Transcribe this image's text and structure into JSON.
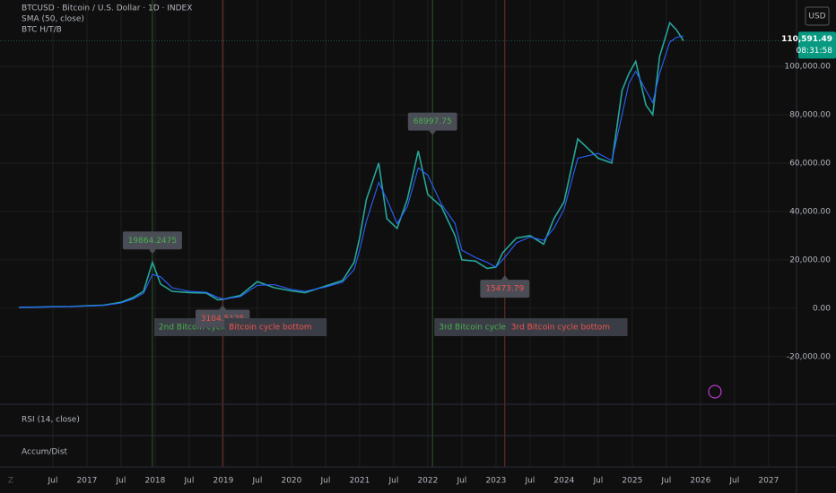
{
  "chart_data": {
    "type": "line",
    "title": "BTCUSD · Bitcoin / U.S. Dollar · 1D · INDEX",
    "indicator": "BTC H/T/B",
    "currency": "USD",
    "last_price": {
      "value": 110591.49,
      "label": "110,591.49"
    },
    "countdown": "08:31:58",
    "panes": [
      "RSI (14, close)",
      "Accum/Dist"
    ],
    "x": [
      2016.0,
      2016.25,
      2016.5,
      2016.75,
      2017.0,
      2017.25,
      2017.5,
      2017.67,
      2017.83,
      2017.96,
      2018.08,
      2018.25,
      2018.5,
      2018.75,
      2018.92,
      2019.0,
      2019.25,
      2019.5,
      2019.75,
      2020.0,
      2020.2,
      2020.5,
      2020.75,
      2020.92,
      2021.0,
      2021.1,
      2021.28,
      2021.4,
      2021.55,
      2021.7,
      2021.86,
      2022.0,
      2022.2,
      2022.4,
      2022.5,
      2022.7,
      2022.87,
      2023.0,
      2023.1,
      2023.3,
      2023.5,
      2023.7,
      2023.85,
      2024.0,
      2024.2,
      2024.5,
      2024.7,
      2024.85,
      2024.95,
      2025.05,
      2025.2,
      2025.3,
      2025.4,
      2025.55,
      2025.65,
      2025.75
    ],
    "series": [
      {
        "name": "BTCUSD · Bitcoin / U.S. Dollar · 1D · INDEX",
        "color": "#26a69a",
        "values": [
          430,
          450,
          650,
          700,
          1000,
          1300,
          2500,
          4300,
          7000,
          19000,
          10000,
          7000,
          6500,
          6300,
          3500,
          3700,
          5300,
          11000,
          8500,
          7200,
          6400,
          9200,
          11500,
          19000,
          29000,
          45000,
          60000,
          37000,
          33000,
          45000,
          65000,
          47000,
          42000,
          30000,
          20000,
          19500,
          16500,
          17000,
          23000,
          29000,
          30000,
          26500,
          37000,
          44000,
          70000,
          62000,
          60000,
          90000,
          97000,
          102000,
          84000,
          80000,
          104000,
          118000,
          115000,
          110591
        ]
      },
      {
        "name": "SMA (50, close)",
        "color": "#2962ff",
        "values": [
          420,
          440,
          600,
          680,
          900,
          1200,
          2200,
          3800,
          6200,
          14000,
          13000,
          8500,
          7000,
          6600,
          4500,
          3800,
          4800,
          9500,
          9800,
          7800,
          7000,
          8800,
          10800,
          16000,
          24000,
          36000,
          52000,
          45000,
          35000,
          42000,
          58000,
          55000,
          43000,
          35000,
          24000,
          21000,
          19000,
          17000,
          20000,
          27000,
          29500,
          28000,
          33000,
          41000,
          62000,
          64000,
          61000,
          80000,
          93000,
          98000,
          90000,
          85000,
          97000,
          110000,
          112000,
          112500
        ]
      }
    ],
    "annotations": [
      {
        "x": 2017.96,
        "value": 19864.2475,
        "label": "2nd Bitcoin cycle top",
        "color": "#4caf50",
        "kind": "top"
      },
      {
        "x": 2018.99,
        "value": 3104.5125,
        "label": "Bitcoin cycle bottom",
        "color": "#ef5350",
        "kind": "bottom"
      },
      {
        "x": 2022.07,
        "value": 68997.75,
        "label": "3rd Bitcoin cycle top",
        "color": "#4caf50",
        "kind": "top"
      },
      {
        "x": 2023.13,
        "value": 15473.79,
        "label": "3rd Bitcoin cycle bottom",
        "color": "#ef5350",
        "kind": "bottom"
      }
    ],
    "xlim": [
      2015.724,
      2027.41
    ],
    "xticks": [
      {
        "value": 2016.5,
        "label": "Jul"
      },
      2017,
      {
        "value": 2017.5,
        "label": "Jul"
      },
      2018,
      {
        "value": 2018.5,
        "label": "Jul"
      },
      2019,
      {
        "value": 2019.5,
        "label": "Jul"
      },
      2020,
      {
        "value": 2020.5,
        "label": "Jul"
      },
      2021,
      {
        "value": 2021.5,
        "label": "Jul"
      },
      2022,
      {
        "value": 2022.5,
        "label": "Jul"
      },
      2023,
      {
        "value": 2023.5,
        "label": "Jul"
      },
      2024,
      {
        "value": 2024.5,
        "label": "Jul"
      },
      2025,
      {
        "value": 2025.5,
        "label": "Jul"
      },
      2026,
      {
        "value": 2026.5,
        "label": "Jul"
      },
      2027
    ],
    "ylim": [
      -39300,
      127400
    ],
    "yticks": [
      {
        "value": -20000,
        "label": "-20,000.00"
      },
      {
        "value": 0,
        "label": "0.00"
      },
      {
        "value": 20000,
        "label": "20,000.00"
      },
      {
        "value": 40000,
        "label": "40,000.00"
      },
      {
        "value": 60000,
        "label": "60,000.00"
      },
      {
        "value": 80000,
        "label": "80,000.00"
      },
      {
        "value": 100000,
        "label": "100,000.00"
      }
    ],
    "grid": true
  }
}
